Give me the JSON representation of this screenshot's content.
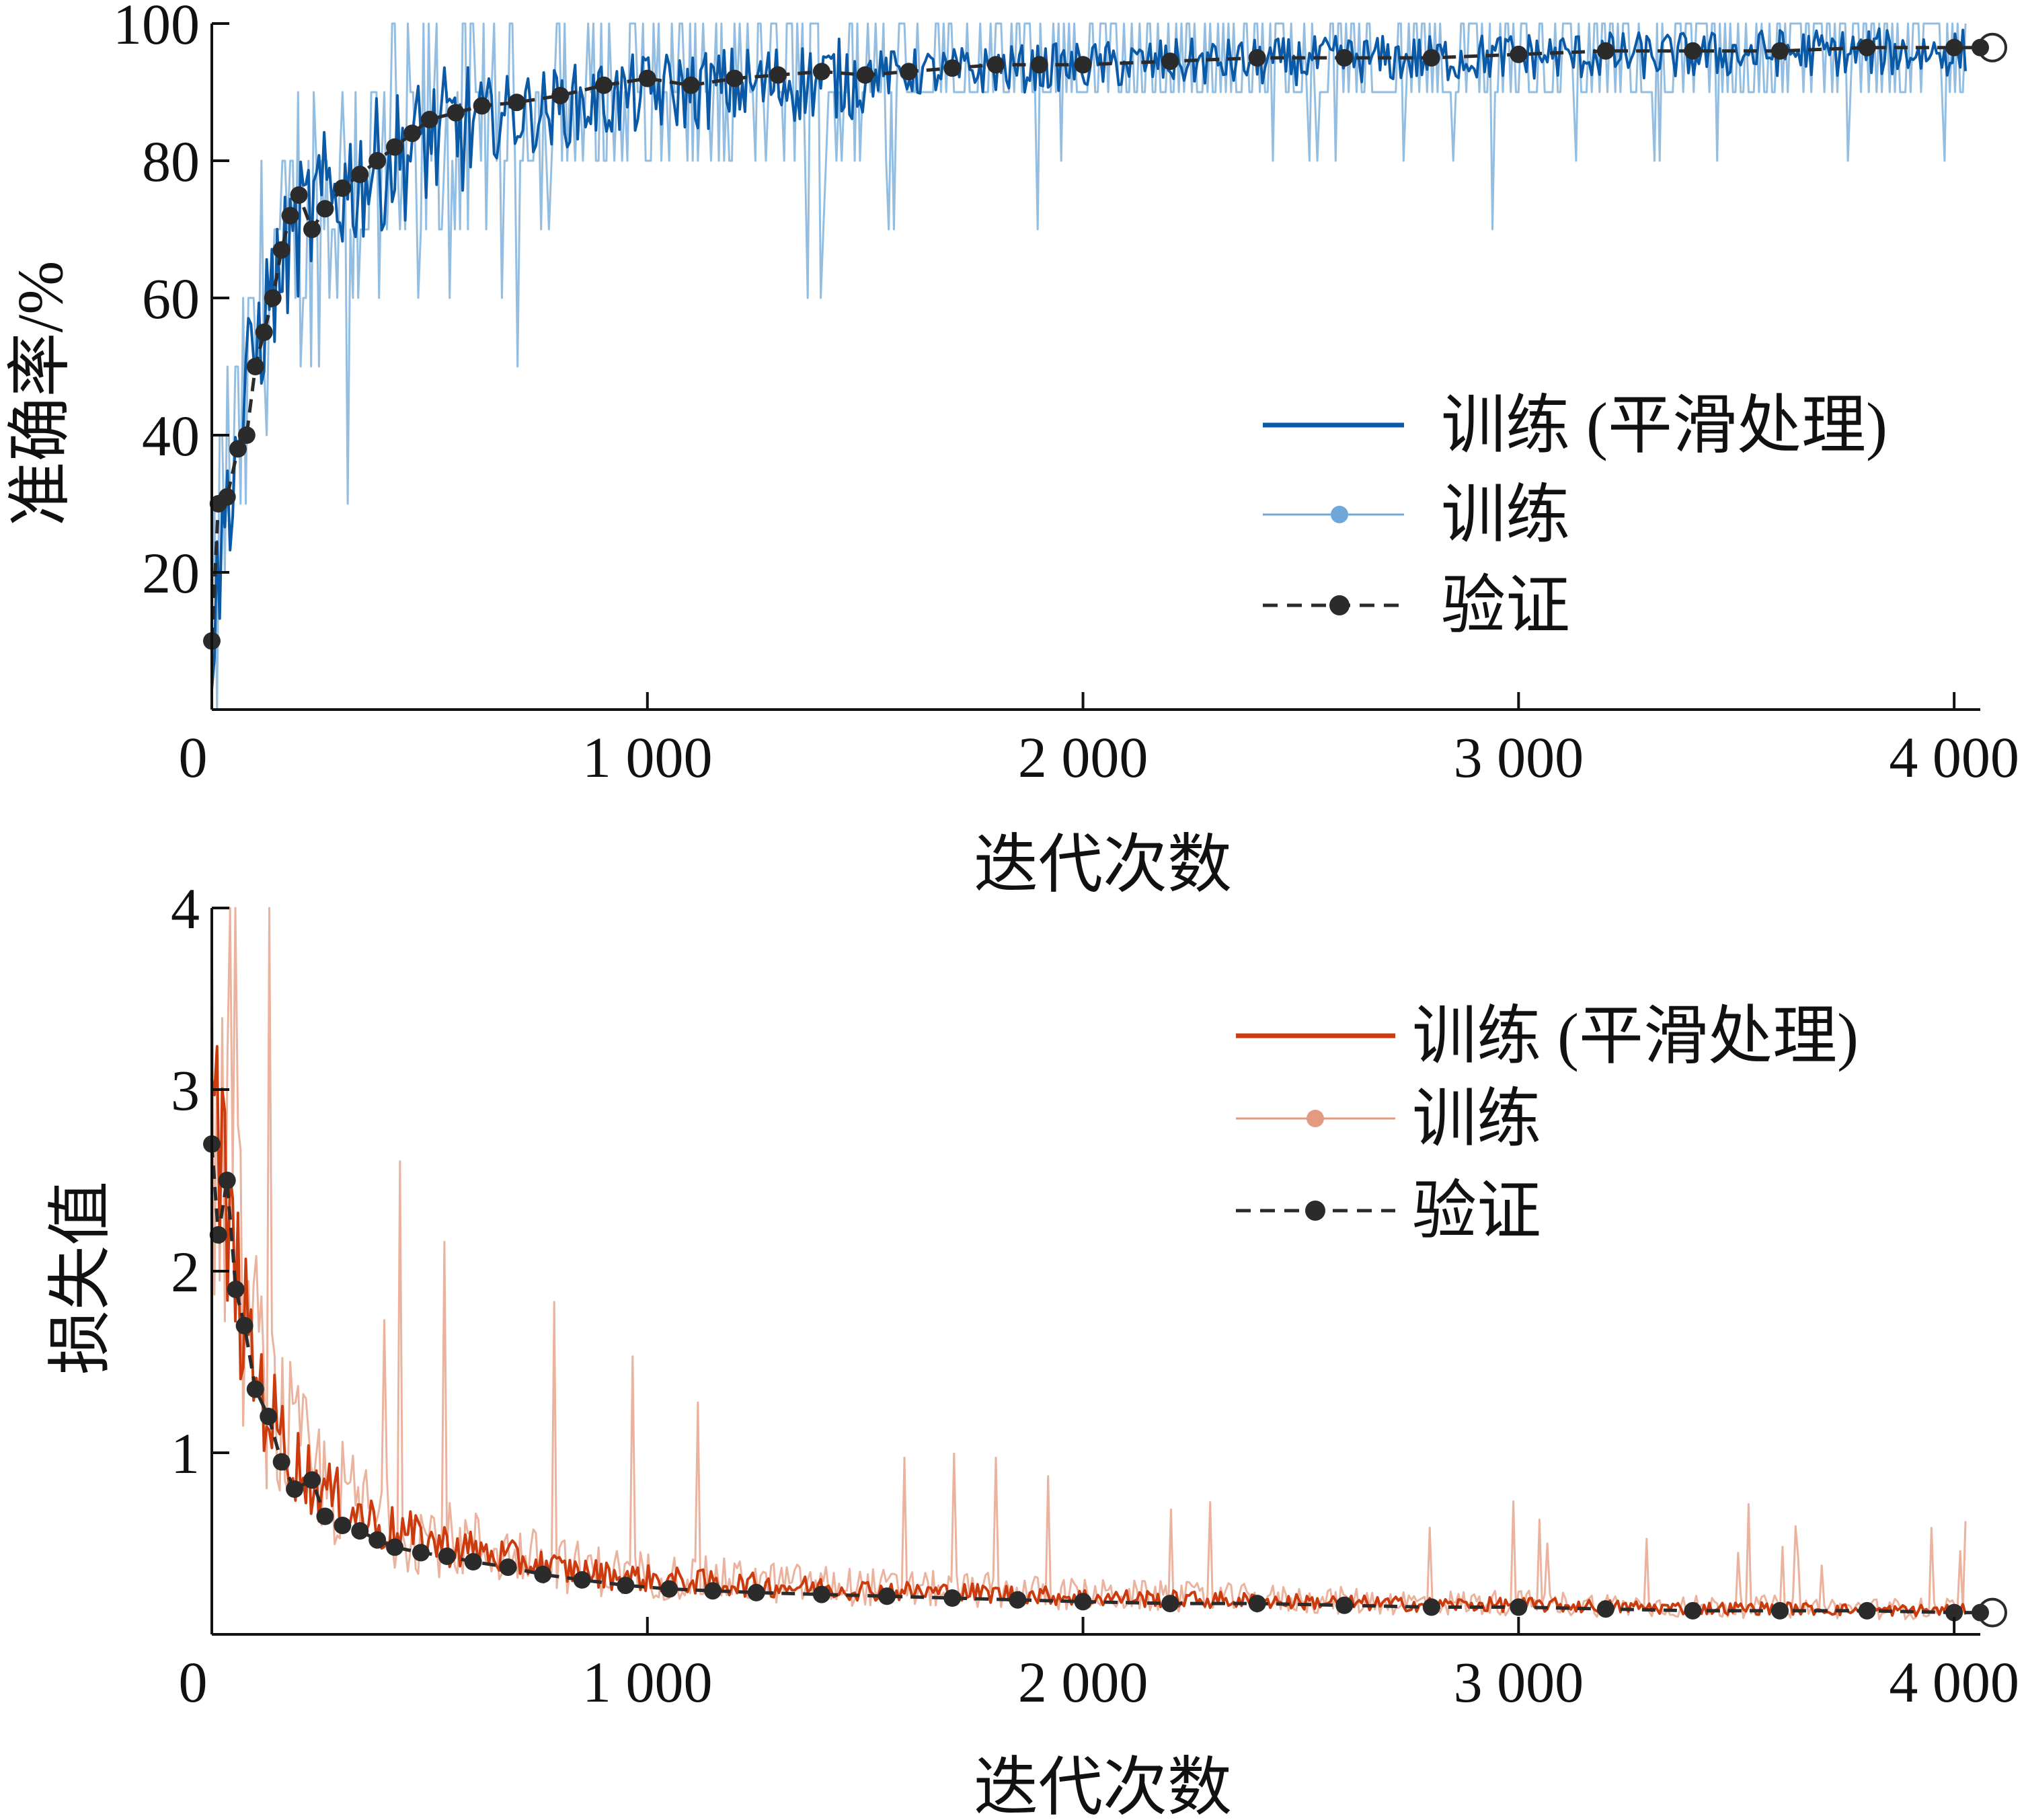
{
  "colors": {
    "train_smooth_acc": "#0a5aa8",
    "train_raw_acc": "#6fa8d8",
    "train_smooth_loss": "#cc3b0e",
    "train_raw_loss": "#e49a7e",
    "validation": "#2b2b2b",
    "axis": "#111111"
  },
  "chart_data": [
    {
      "type": "line",
      "xlabel": "迭代次数",
      "ylabel": "准确率/%",
      "xlim": [
        0,
        4060
      ],
      "ylim": [
        0,
        100
      ],
      "x_ticks": [
        0,
        1000,
        2000,
        3000,
        4000
      ],
      "x_tick_labels": [
        "0",
        "1 000",
        "2 000",
        "3 000",
        "4 000"
      ],
      "y_ticks": [
        20,
        40,
        60,
        80,
        100
      ],
      "y_tick_labels": [
        "20",
        "40",
        "60",
        "80",
        "100"
      ],
      "legend_position": "right-middle",
      "legend": [
        "训练 (平滑处理)",
        "训练",
        "验证"
      ],
      "series": [
        {
          "name": "训练 (平滑处理)",
          "x": [
            0,
            20,
            50,
            80,
            100,
            150,
            200,
            250,
            300,
            350,
            400,
            500,
            600,
            700,
            800,
            900,
            1000,
            1200,
            1400,
            1600,
            1800,
            2000,
            2200,
            2400,
            2600,
            2800,
            3000,
            3200,
            3400,
            3600,
            3800,
            4000,
            4060
          ],
          "values": [
            10,
            25,
            38,
            48,
            55,
            65,
            72,
            76,
            78,
            80,
            82,
            85,
            87,
            88,
            89,
            90,
            91,
            92,
            93,
            93.5,
            94,
            94.5,
            95,
            95,
            95.5,
            95.5,
            96,
            96,
            96,
            96.5,
            96.5,
            96.5,
            96.5
          ]
        },
        {
          "name": "训练",
          "x": [
            0,
            20,
            50,
            80,
            100,
            150,
            200,
            250,
            300,
            350,
            400,
            500,
            600,
            700,
            800,
            900,
            1000,
            1200,
            1400,
            1600,
            1800,
            2000,
            2200,
            2400,
            2600,
            2800,
            3000,
            3200,
            3400,
            3600,
            3800,
            4000,
            4060
          ],
          "values": [
            10,
            25,
            38,
            48,
            55,
            65,
            72,
            76,
            78,
            80,
            82,
            85,
            87,
            88,
            89,
            90,
            91,
            92,
            93,
            93.5,
            94,
            94.5,
            95,
            95,
            95.5,
            95.5,
            96,
            96,
            96,
            96.5,
            96.5,
            96.5,
            96.5
          ]
        },
        {
          "name": "验证",
          "x": [
            0,
            15,
            35,
            60,
            80,
            100,
            120,
            140,
            160,
            180,
            200,
            230,
            260,
            300,
            340,
            380,
            420,
            460,
            500,
            560,
            620,
            700,
            800,
            900,
            1000,
            1100,
            1200,
            1300,
            1400,
            1500,
            1600,
            1700,
            1800,
            1900,
            2000,
            2200,
            2400,
            2600,
            2800,
            3000,
            3200,
            3400,
            3600,
            3800,
            4000,
            4060
          ],
          "values": [
            10,
            30,
            31,
            38,
            40,
            50,
            55,
            60,
            67,
            72,
            75,
            70,
            73,
            76,
            78,
            80,
            82,
            84,
            86,
            87,
            88,
            88.5,
            89.5,
            91,
            92,
            91,
            92,
            92.5,
            93,
            92.5,
            93,
            93.5,
            94,
            94,
            94,
            94.5,
            95,
            95,
            95,
            95.5,
            96,
            96,
            96,
            96.5,
            96.5,
            96.5
          ]
        }
      ]
    },
    {
      "type": "line",
      "xlabel": "迭代次数",
      "ylabel": "损失值",
      "xlim": [
        0,
        4060
      ],
      "ylim": [
        0,
        4
      ],
      "x_ticks": [
        0,
        1000,
        2000,
        3000,
        4000
      ],
      "x_tick_labels": [
        "0",
        "1 000",
        "2 000",
        "3 000",
        "4 000"
      ],
      "y_ticks": [
        1,
        2,
        3,
        4
      ],
      "y_tick_labels": [
        "1",
        "2",
        "3",
        "4"
      ],
      "legend_position": "right-top",
      "legend": [
        "训练 (平滑处理)",
        "训练",
        "验证"
      ],
      "series": [
        {
          "name": "训练 (平滑处理)",
          "x": [
            0,
            20,
            50,
            80,
            100,
            150,
            200,
            250,
            300,
            350,
            400,
            500,
            600,
            700,
            800,
            900,
            1000,
            1200,
            1400,
            1600,
            1800,
            2000,
            2200,
            2400,
            2600,
            2800,
            3000,
            3200,
            3400,
            3600,
            3800,
            4000,
            4060
          ],
          "values": [
            2.9,
            2.5,
            2.0,
            1.6,
            1.4,
            1.1,
            0.9,
            0.78,
            0.7,
            0.63,
            0.57,
            0.5,
            0.45,
            0.4,
            0.35,
            0.32,
            0.3,
            0.27,
            0.25,
            0.23,
            0.22,
            0.2,
            0.19,
            0.18,
            0.17,
            0.16,
            0.16,
            0.15,
            0.14,
            0.14,
            0.13,
            0.13,
            0.13
          ]
        },
        {
          "name": "训练",
          "x": [
            0,
            20,
            50,
            80,
            100,
            150,
            200,
            250,
            300,
            350,
            400,
            500,
            600,
            700,
            800,
            900,
            1000,
            1200,
            1400,
            1600,
            1800,
            2000,
            2200,
            2400,
            2600,
            2800,
            3000,
            3200,
            3400,
            3600,
            3800,
            4000,
            4060
          ],
          "values": [
            2.9,
            2.5,
            2.0,
            1.6,
            1.4,
            1.1,
            0.9,
            0.78,
            0.7,
            0.63,
            0.57,
            0.5,
            0.45,
            0.4,
            0.35,
            0.32,
            0.3,
            0.27,
            0.25,
            0.23,
            0.22,
            0.2,
            0.19,
            0.18,
            0.17,
            0.16,
            0.16,
            0.15,
            0.14,
            0.14,
            0.13,
            0.13,
            0.13
          ]
        },
        {
          "name": "验证",
          "x": [
            0,
            15,
            35,
            55,
            75,
            100,
            130,
            160,
            190,
            230,
            260,
            300,
            340,
            380,
            420,
            480,
            540,
            600,
            680,
            760,
            850,
            950,
            1050,
            1150,
            1250,
            1400,
            1550,
            1700,
            1850,
            2000,
            2200,
            2400,
            2600,
            2800,
            3000,
            3200,
            3400,
            3600,
            3800,
            4000,
            4060
          ],
          "values": [
            2.7,
            2.2,
            2.5,
            1.9,
            1.7,
            1.35,
            1.2,
            0.95,
            0.8,
            0.85,
            0.65,
            0.6,
            0.57,
            0.52,
            0.48,
            0.45,
            0.43,
            0.4,
            0.37,
            0.33,
            0.3,
            0.27,
            0.25,
            0.24,
            0.23,
            0.22,
            0.21,
            0.2,
            0.19,
            0.18,
            0.17,
            0.17,
            0.16,
            0.15,
            0.15,
            0.14,
            0.13,
            0.13,
            0.13,
            0.12,
            0.12
          ]
        }
      ]
    }
  ]
}
